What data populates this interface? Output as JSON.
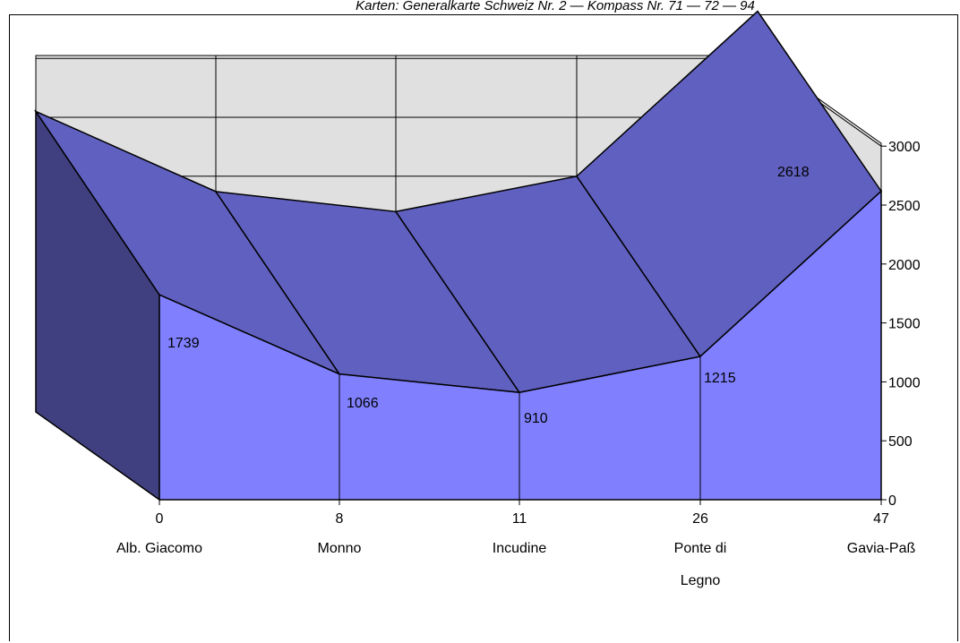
{
  "chart_data": {
    "type": "area",
    "title": "Karten: Generalkarte Schweiz Nr. 2 — Kompass Nr. 71 — 72 — 94",
    "categories": [
      "Alb. Giacomo",
      "Monno",
      "Incudine",
      "Ponte di Legno",
      "Gavia-Paß"
    ],
    "x_values": [
      "0",
      "8",
      "11",
      "26",
      "47"
    ],
    "series": [
      {
        "values": [
          2550,
          1870,
          1700,
          2000,
          3400
        ]
      },
      {
        "values": [
          1739,
          1066,
          910,
          1215,
          2618
        ]
      }
    ],
    "data_labels": [
      "1739",
      "1066",
      "910",
      "1215",
      "2618"
    ],
    "yticks": [
      "0",
      "500",
      "1000",
      "1500",
      "2000",
      "2500",
      "3000"
    ],
    "ylim": [
      0,
      3000
    ],
    "grid": true,
    "projection": "3d",
    "colors": {
      "front_face": "#8080ff",
      "top_face": "#6060c0",
      "side_face": "#404080",
      "wall": "#e0e0e0",
      "grid": "#000000"
    }
  }
}
